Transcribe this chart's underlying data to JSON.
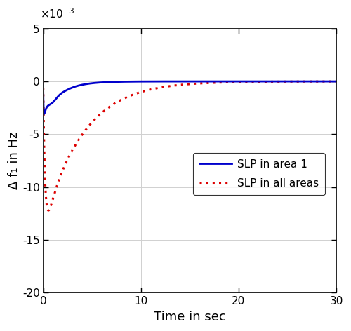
{
  "title": "",
  "xlabel": "Time in sec",
  "ylabel": "Δ f₁ in Hz",
  "xlim": [
    0,
    30
  ],
  "ylim": [
    -20,
    5
  ],
  "yticks": [
    -20,
    -15,
    -10,
    -5,
    0,
    5
  ],
  "xticks": [
    0,
    10,
    20,
    30
  ],
  "legend": [
    "SLP in area 1",
    "SLP in all areas"
  ],
  "line1_color": "#0000cc",
  "line2_color": "#dd0000",
  "background_color": "#ffffff",
  "grid_color": "#d0d0d0",
  "exponent_label": "×10⁻³"
}
